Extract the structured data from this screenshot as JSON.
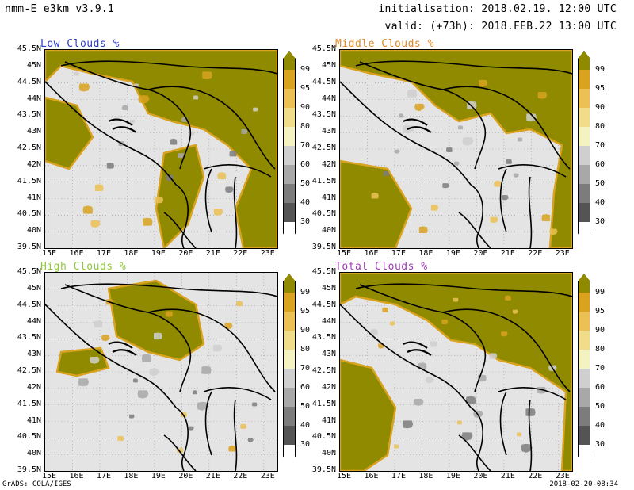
{
  "header": {
    "model": "nmm-E e3km v3.9.1",
    "initialisation": "initialisation: 2018.02.19. 12:00 UTC",
    "valid": "valid: (+73h): 2018.FEB.22 13:00 UTC"
  },
  "panels": [
    {
      "title": "Low Clouds %",
      "title_color": "#2a3cc8"
    },
    {
      "title": "Middle Clouds %",
      "title_color": "#e08a2c"
    },
    {
      "title": "High Clouds %",
      "title_color": "#8ec83c"
    },
    {
      "title": "Total Clouds %",
      "title_color": "#a03cb4"
    }
  ],
  "axes": {
    "lat_labels": [
      "45.5N",
      "45N",
      "44.5N",
      "44N",
      "43.5N",
      "43N",
      "42.5N",
      "42N",
      "41.5N",
      "41N",
      "40.5N",
      "40N",
      "39.5N"
    ],
    "lon_labels": [
      "15E",
      "16E",
      "17E",
      "18E",
      "19E",
      "20E",
      "21E",
      "22E",
      "23E"
    ]
  },
  "colorbar": {
    "ticks": [
      "99",
      "95",
      "90",
      "80",
      "70",
      "60",
      "50",
      "40",
      "30"
    ],
    "colors": [
      "#8f8a00",
      "#d9a21f",
      "#ebc154",
      "#f1dc8a",
      "#f4f2c0",
      "#cfcfcf",
      "#a8a8a8",
      "#7c7c7c",
      "#545454",
      "#ffffff"
    ]
  },
  "footer": {
    "left": "GrADS: COLA/IGES",
    "right": "2018-02-20-08:34"
  }
}
